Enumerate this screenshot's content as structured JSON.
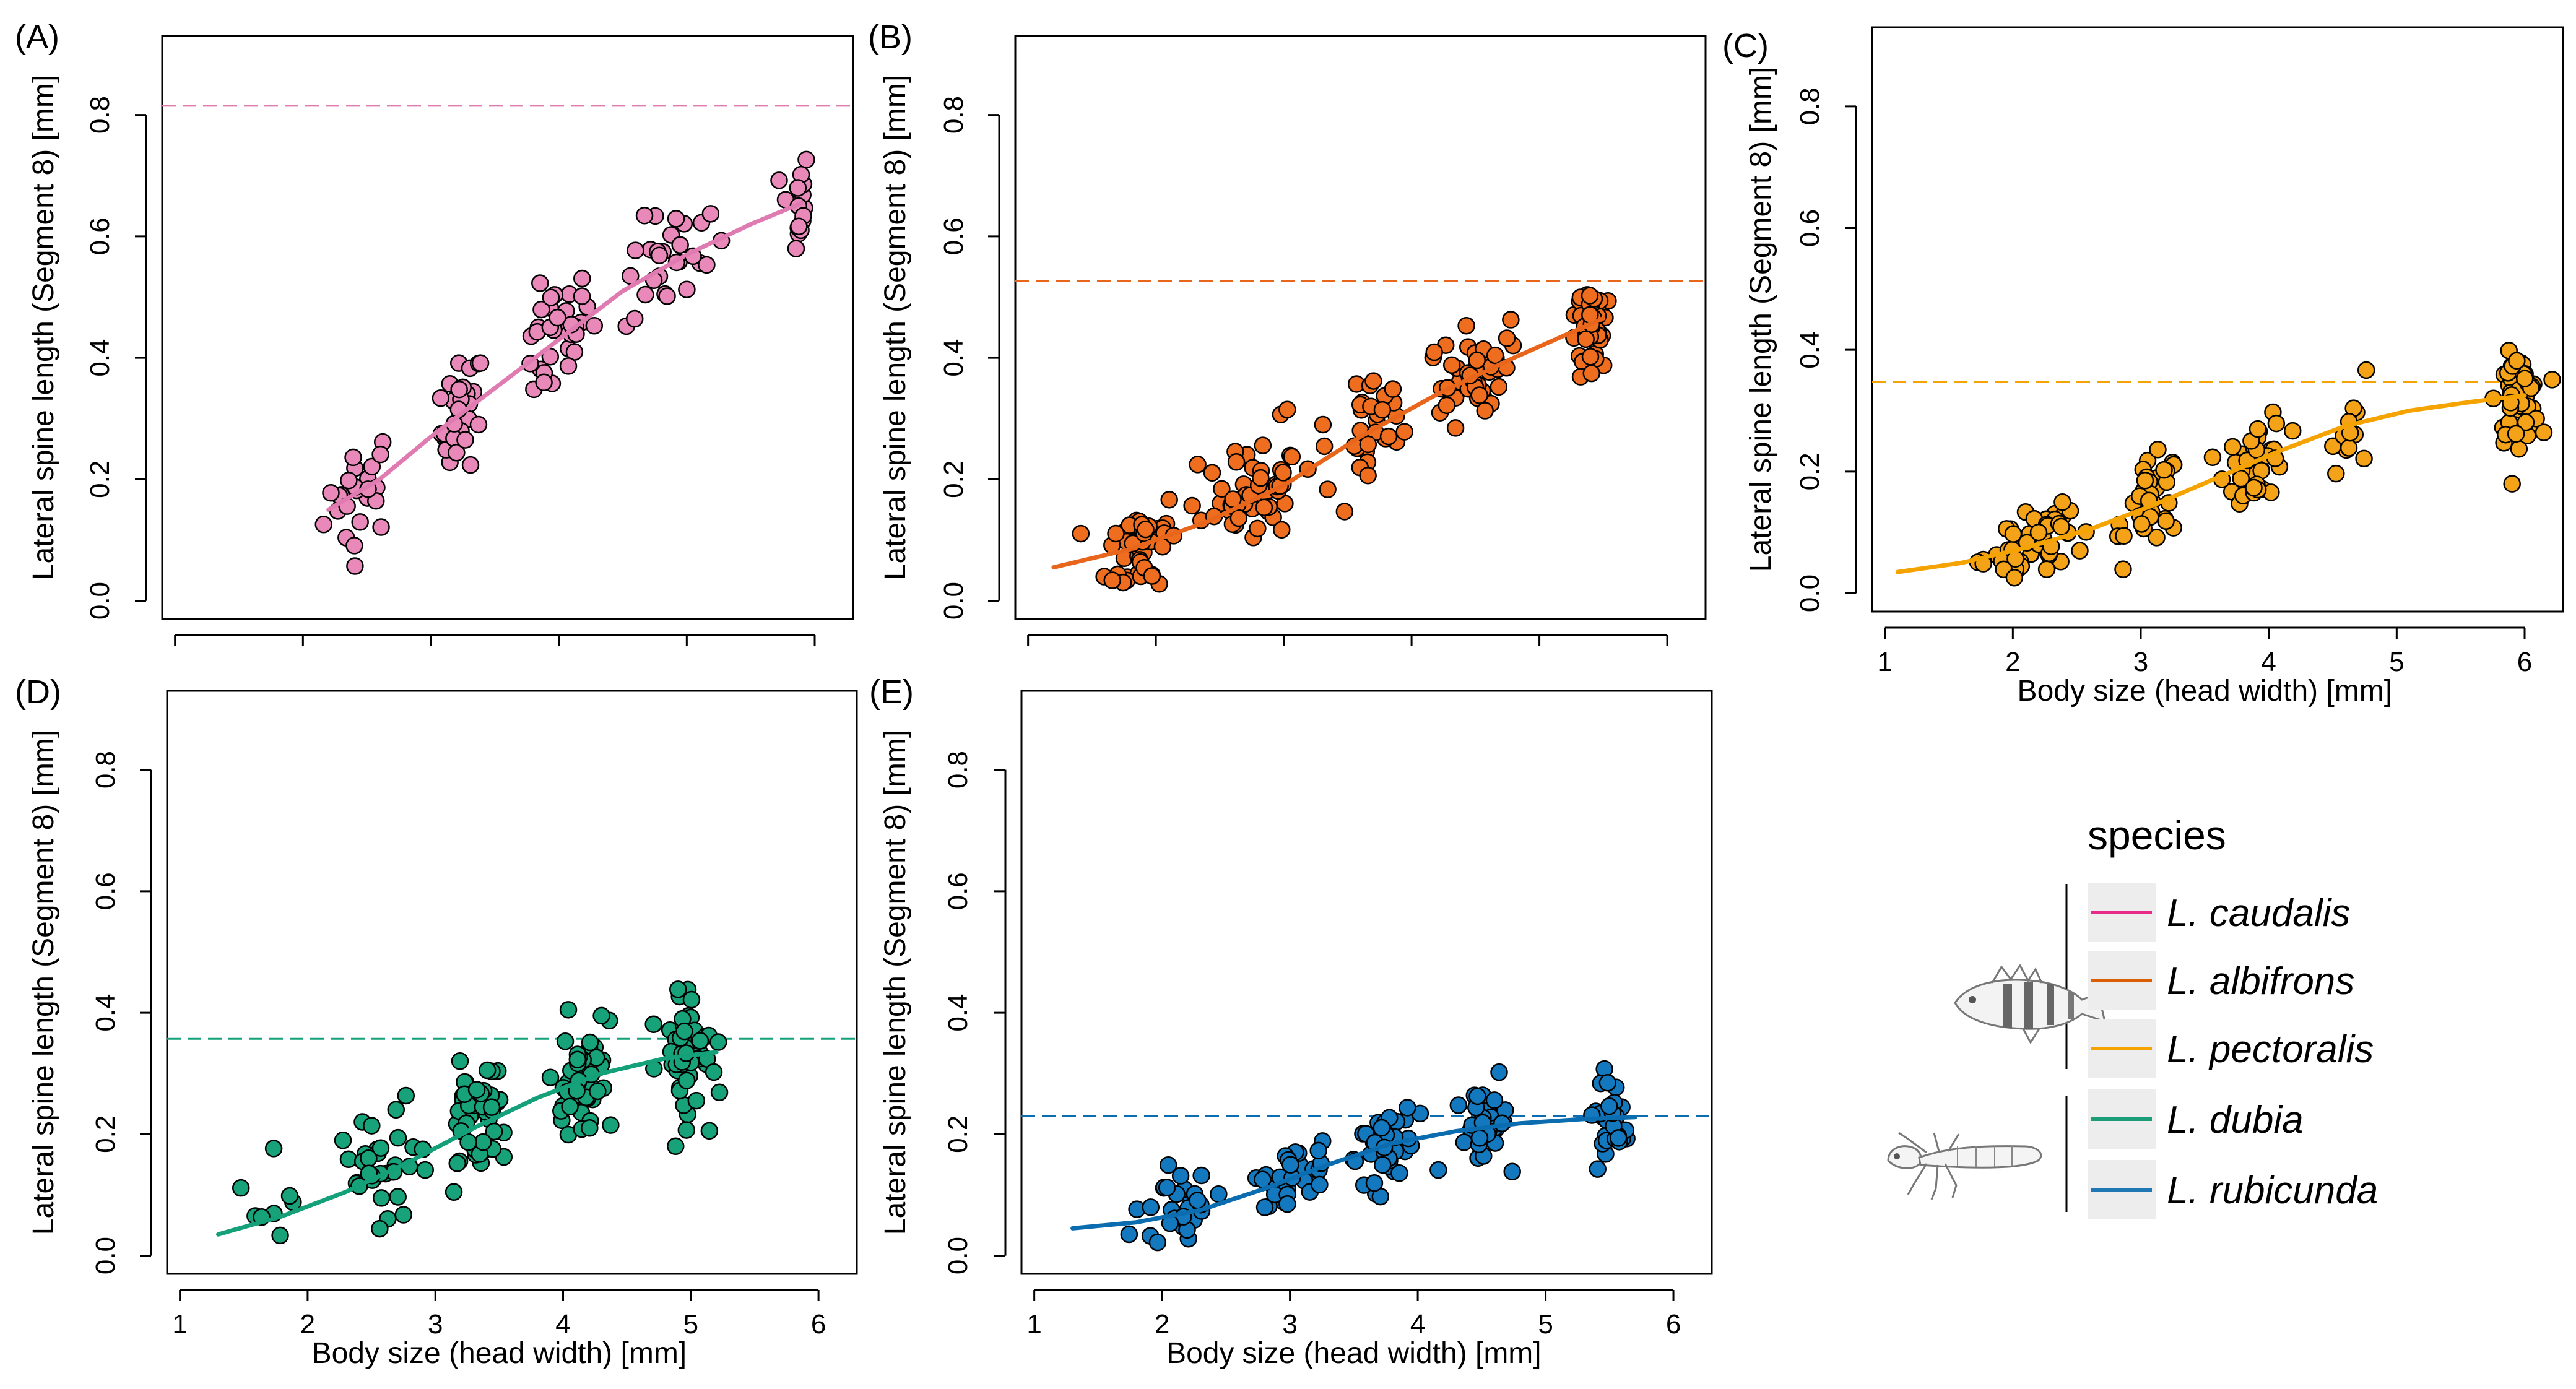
{
  "legend": {
    "title": "species",
    "groups": [
      "fish",
      "dragonfly larva"
    ],
    "entries": [
      {
        "label": "L. caudalis",
        "color": "#E7298A"
      },
      {
        "label": "L. albifrons",
        "color": "#D95F02"
      },
      {
        "label": "L. pectoralis",
        "color": "#F5A300"
      },
      {
        "label": "L. dubia",
        "color": "#1B9E77"
      },
      {
        "label": "L. rubicunda",
        "color": "#1F78B4"
      }
    ]
  },
  "chart_data": [
    {
      "panel": "(A)",
      "type": "scatter",
      "species": "L. caudalis",
      "color": "#E07BB1",
      "point_color": "#E889BA",
      "xlabel": "",
      "ylabel": "Lateral spine length (Segment 8) [mm]",
      "xlim": [
        0.9,
        6.3
      ],
      "ylim": [
        -0.03,
        0.93
      ],
      "yticks": [
        "0.0",
        "0.2",
        "0.4",
        "0.6",
        "0.8"
      ],
      "xticks": [],
      "reference_line": 0.815,
      "curve": [
        [
          2.2,
          0.15
        ],
        [
          2.6,
          0.2
        ],
        [
          3.0,
          0.27
        ],
        [
          3.5,
          0.35
        ],
        [
          4.0,
          0.43
        ],
        [
          4.5,
          0.51
        ],
        [
          5.0,
          0.57
        ],
        [
          5.5,
          0.62
        ],
        [
          5.9,
          0.655
        ]
      ],
      "clusters": [
        {
          "cx": 2.45,
          "sx": 0.2,
          "cy": 0.18,
          "n": 25
        },
        {
          "cx": 3.25,
          "sx": 0.12,
          "cy": 0.3,
          "n": 30
        },
        {
          "cx": 3.95,
          "sx": 0.22,
          "cy": 0.43,
          "n": 35
        },
        {
          "cx": 4.9,
          "sx": 0.28,
          "cy": 0.57,
          "n": 28
        },
        {
          "cx": 5.85,
          "sx": 0.08,
          "cy": 0.66,
          "n": 18
        }
      ],
      "jitter_y": 0.045
    },
    {
      "panel": "(B)",
      "type": "scatter",
      "species": "L. albifrons",
      "color": "#E8651C",
      "point_color": "#EE6D1E",
      "xlabel": "",
      "ylabel": "Lateral spine length (Segment 8) [mm]",
      "xlim": [
        0.9,
        6.3
      ],
      "ylim": [
        -0.03,
        0.93
      ],
      "yticks": [
        "0.0",
        "0.2",
        "0.4",
        "0.6",
        "0.8"
      ],
      "xticks": [],
      "reference_line": 0.527,
      "curve": [
        [
          1.2,
          0.055
        ],
        [
          1.8,
          0.085
        ],
        [
          2.4,
          0.13
        ],
        [
          3.0,
          0.19
        ],
        [
          3.6,
          0.27
        ],
        [
          4.2,
          0.34
        ],
        [
          4.8,
          0.4
        ],
        [
          5.5,
          0.465
        ]
      ],
      "clusters": [
        {
          "cx": 1.9,
          "sx": 0.2,
          "cy": 0.09,
          "n": 45
        },
        {
          "cx": 2.8,
          "sx": 0.32,
          "cy": 0.19,
          "n": 55
        },
        {
          "cx": 3.7,
          "sx": 0.15,
          "cy": 0.3,
          "n": 30
        },
        {
          "cx": 4.5,
          "sx": 0.18,
          "cy": 0.37,
          "n": 50
        },
        {
          "cx": 5.4,
          "sx": 0.1,
          "cy": 0.46,
          "n": 45
        }
      ],
      "jitter_y": 0.04
    },
    {
      "panel": "(C)",
      "type": "scatter",
      "species": "L. pectoralis",
      "color": "#F5A300",
      "point_color": "#F4A217",
      "xlabel": "Body size (head width) [mm]",
      "ylabel": "Lateral spine length (Segment 8) [mm]",
      "xlim": [
        0.9,
        6.3
      ],
      "ylim": [
        -0.03,
        0.93
      ],
      "yticks": [
        "0.0",
        "0.2",
        "0.4",
        "0.6",
        "0.8"
      ],
      "xticks": [
        "1",
        "2",
        "3",
        "4",
        "5",
        "6"
      ],
      "reference_line": 0.347,
      "curve": [
        [
          1.1,
          0.035
        ],
        [
          1.6,
          0.05
        ],
        [
          2.1,
          0.075
        ],
        [
          2.6,
          0.105
        ],
        [
          3.1,
          0.145
        ],
        [
          3.6,
          0.19
        ],
        [
          4.1,
          0.235
        ],
        [
          4.6,
          0.275
        ],
        [
          5.1,
          0.3
        ],
        [
          5.6,
          0.315
        ],
        [
          6.0,
          0.325
        ]
      ],
      "clusters": [
        {
          "cx": 2.1,
          "sx": 0.32,
          "cy": 0.08,
          "n": 50
        },
        {
          "cx": 3.1,
          "sx": 0.15,
          "cy": 0.15,
          "n": 35
        },
        {
          "cx": 3.9,
          "sx": 0.17,
          "cy": 0.22,
          "n": 40
        },
        {
          "cx": 4.7,
          "sx": 0.15,
          "cy": 0.28,
          "n": 12
        },
        {
          "cx": 5.95,
          "sx": 0.12,
          "cy": 0.32,
          "n": 60
        }
      ],
      "jitter_y": 0.035
    },
    {
      "panel": "(D)",
      "type": "scatter",
      "species": "L. dubia",
      "color": "#14A079",
      "point_color": "#17A27A",
      "xlabel": "Body size (head width) [mm]",
      "ylabel": "Lateral spine length (Segment 8) [mm]",
      "xlim": [
        0.9,
        6.3
      ],
      "ylim": [
        -0.03,
        0.93
      ],
      "yticks": [
        "0.0",
        "0.2",
        "0.4",
        "0.6",
        "0.8"
      ],
      "xticks": [
        "1",
        "2",
        "3",
        "4",
        "5",
        "6"
      ],
      "reference_line": 0.357,
      "curve": [
        [
          1.3,
          0.035
        ],
        [
          1.8,
          0.065
        ],
        [
          2.3,
          0.105
        ],
        [
          2.8,
          0.155
        ],
        [
          3.3,
          0.21
        ],
        [
          3.8,
          0.26
        ],
        [
          4.3,
          0.3
        ],
        [
          4.8,
          0.325
        ],
        [
          5.2,
          0.335
        ]
      ],
      "clusters": [
        {
          "cx": 1.7,
          "sx": 0.2,
          "cy": 0.06,
          "n": 8
        },
        {
          "cx": 2.6,
          "sx": 0.22,
          "cy": 0.14,
          "n": 35
        },
        {
          "cx": 3.35,
          "sx": 0.17,
          "cy": 0.23,
          "n": 50
        },
        {
          "cx": 4.15,
          "sx": 0.17,
          "cy": 0.29,
          "n": 50
        },
        {
          "cx": 5.0,
          "sx": 0.15,
          "cy": 0.34,
          "n": 55
        }
      ],
      "jitter_y": 0.045
    },
    {
      "panel": "(E)",
      "type": "scatter",
      "species": "L. rubicunda",
      "color": "#0B6DAF",
      "point_color": "#1478BE",
      "xlabel": "Body size (head width) [mm]",
      "ylabel": "Lateral spine length (Segment 8) [mm]",
      "xlim": [
        0.9,
        6.3
      ],
      "ylim": [
        -0.03,
        0.93
      ],
      "yticks": [
        "0.0",
        "0.2",
        "0.4",
        "0.6",
        "0.8"
      ],
      "xticks": [
        "1",
        "2",
        "3",
        "4",
        "5",
        "6"
      ],
      "reference_line": 0.23,
      "curve": [
        [
          1.3,
          0.045
        ],
        [
          1.8,
          0.055
        ],
        [
          2.3,
          0.075
        ],
        [
          2.8,
          0.11
        ],
        [
          3.3,
          0.15
        ],
        [
          3.8,
          0.185
        ],
        [
          4.3,
          0.205
        ],
        [
          4.8,
          0.218
        ],
        [
          5.3,
          0.225
        ],
        [
          5.7,
          0.228
        ]
      ],
      "clusters": [
        {
          "cx": 2.1,
          "sx": 0.28,
          "cy": 0.07,
          "n": 30
        },
        {
          "cx": 3.0,
          "sx": 0.2,
          "cy": 0.15,
          "n": 30
        },
        {
          "cx": 3.75,
          "sx": 0.18,
          "cy": 0.19,
          "n": 40
        },
        {
          "cx": 4.5,
          "sx": 0.15,
          "cy": 0.22,
          "n": 30
        },
        {
          "cx": 5.5,
          "sx": 0.12,
          "cy": 0.23,
          "n": 30
        }
      ],
      "jitter_y": 0.035
    }
  ]
}
